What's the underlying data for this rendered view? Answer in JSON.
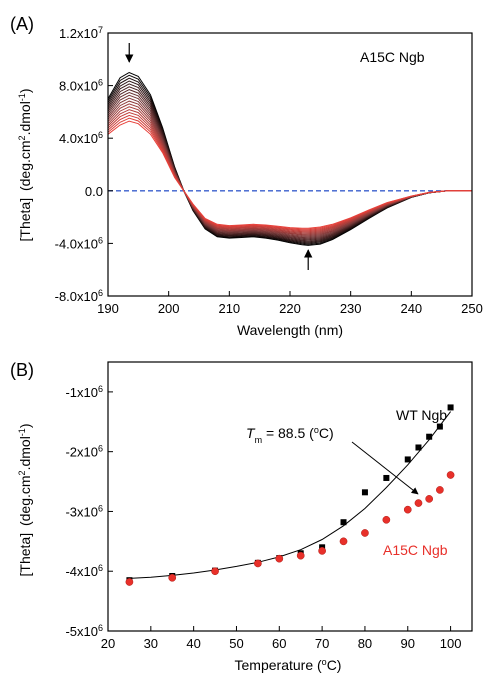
{
  "chart_data": [
    {
      "panel_label": "(A)",
      "type": "line",
      "annotation": "A15C Ngb",
      "xlabel": "Wavelength (nm)",
      "ylabel_main": "[Theta]",
      "ylabel_units": "(deg.cm",
      "ylabel_units_sup": "2",
      "ylabel_units_mid": ".dmol",
      "ylabel_units_sup2": "-1",
      "ylabel_units_end": ")",
      "xlim": [
        190,
        250
      ],
      "ylim": [
        -8000000,
        12000000
      ],
      "x_ticks": [
        190,
        200,
        210,
        220,
        230,
        240,
        250
      ],
      "y_ticks": [
        {
          "value": 12000000,
          "mant": "1.2x10",
          "exp": "7"
        },
        {
          "value": 8000000,
          "mant": "8.0x10",
          "exp": "6"
        },
        {
          "value": 4000000,
          "mant": "4.0x10",
          "exp": "6"
        },
        {
          "value": 0,
          "mant": "0.0",
          "exp": ""
        },
        {
          "value": -4000000,
          "mant": "-4.0x10",
          "exp": "6"
        },
        {
          "value": -8000000,
          "mant": "-8.0x10",
          "exp": "6"
        }
      ],
      "zero_line": {
        "y": 0,
        "color": "#3a5fcd",
        "style": "dashed"
      },
      "x": [
        190,
        192,
        193.5,
        195,
        197,
        199,
        201,
        202.5,
        204,
        206,
        208,
        210,
        212,
        214,
        216,
        218,
        220,
        222,
        223,
        225,
        227,
        230,
        233,
        236,
        240,
        243,
        246,
        248,
        250
      ],
      "shape_lead": [
        7.0,
        8.6,
        9.0,
        8.7,
        7.3,
        4.8,
        1.8,
        0,
        -1.5,
        -2.9,
        -3.5,
        -3.6,
        -3.55,
        -3.5,
        -3.6,
        -3.75,
        -3.95,
        -4.1,
        -4.15,
        -4.05,
        -3.7,
        -2.95,
        -2.1,
        -1.3,
        -0.5,
        -0.15,
        0,
        0,
        0
      ],
      "shape_trail": [
        4.3,
        5.0,
        5.3,
        5.1,
        4.3,
        2.9,
        1.0,
        0,
        -1.0,
        -2.1,
        -2.55,
        -2.65,
        -2.6,
        -2.55,
        -2.6,
        -2.7,
        -2.8,
        -2.85,
        -2.85,
        -2.75,
        -2.55,
        -2.05,
        -1.45,
        -0.9,
        -0.4,
        -0.12,
        0,
        0,
        0
      ],
      "series_count": 18,
      "series_colors": {
        "start": "#000000",
        "mid": "#7a3a3a",
        "end": "#e8413a"
      },
      "arrows": [
        {
          "x": 193.5,
          "direction": "down"
        },
        {
          "x": 223,
          "direction": "up"
        }
      ]
    },
    {
      "panel_label": "(B)",
      "type": "scatter",
      "xlabel": "Temperature (",
      "xlabel_sup": "o",
      "xlabel_end": "C)",
      "ylabel_main": "[Theta]",
      "ylabel_units": "(deg.cm",
      "ylabel_units_sup": "2",
      "ylabel_units_mid": ".dmol",
      "ylabel_units_sup2": "-1",
      "ylabel_units_end": ")",
      "xlim": [
        20,
        105
      ],
      "ylim": [
        -5000000,
        -500000
      ],
      "x_ticks": [
        20,
        30,
        40,
        50,
        60,
        70,
        80,
        90,
        100
      ],
      "y_ticks": [
        {
          "value": -1000000,
          "mant": "-1x10",
          "exp": "6"
        },
        {
          "value": -2000000,
          "mant": "-2x10",
          "exp": "6"
        },
        {
          "value": -3000000,
          "mant": "-3x10",
          "exp": "6"
        },
        {
          "value": -4000000,
          "mant": "-4x10",
          "exp": "6"
        },
        {
          "value": -5000000,
          "mant": "-5x10",
          "exp": "6"
        }
      ],
      "series": [
        {
          "name": "WT Ngb",
          "color": "#000000",
          "marker": "square",
          "x": [
            25,
            35,
            45,
            55,
            60,
            65,
            70,
            75,
            80,
            85,
            90,
            92.5,
            95,
            97.5,
            100
          ],
          "y": [
            -4150000,
            -4080000,
            -3990000,
            -3860000,
            -3780000,
            -3700000,
            -3600000,
            -3180000,
            -2680000,
            -2440000,
            -2130000,
            -1930000,
            -1750000,
            -1580000,
            -1260000
          ]
        },
        {
          "name": "A15C Ngb",
          "color": "#e8302a",
          "marker": "circle",
          "x": [
            25,
            35,
            45,
            55,
            60,
            65,
            70,
            75,
            80,
            85,
            90,
            92.5,
            95,
            97.5,
            100
          ],
          "y": [
            -4180000,
            -4110000,
            -4000000,
            -3870000,
            -3790000,
            -3740000,
            -3660000,
            -3500000,
            -3360000,
            -3140000,
            -2970000,
            -2860000,
            -2790000,
            -2640000,
            -2390000
          ]
        }
      ],
      "fit_curve": {
        "color": "#000000",
        "x": [
          25,
          30,
          35,
          40,
          45,
          50,
          55,
          60,
          65,
          70,
          75,
          80,
          85,
          90,
          95,
          100
        ],
        "y": [
          -4120000,
          -4100000,
          -4070000,
          -4030000,
          -3980000,
          -3920000,
          -3850000,
          -3760000,
          -3640000,
          -3470000,
          -3240000,
          -2950000,
          -2600000,
          -2220000,
          -1800000,
          -1330000
        ]
      },
      "annotation": {
        "prefix": "T",
        "sub": "m",
        "mid": " = 88.5 (",
        "sup": "o",
        "end": "C)",
        "arrow_to": [
          86.5,
          -2450000
        ]
      },
      "legend_labels": [
        {
          "text": "WT Ngb",
          "color": "#000000"
        },
        {
          "text": "A15C Ngb",
          "color": "#e8302a"
        }
      ]
    }
  ]
}
